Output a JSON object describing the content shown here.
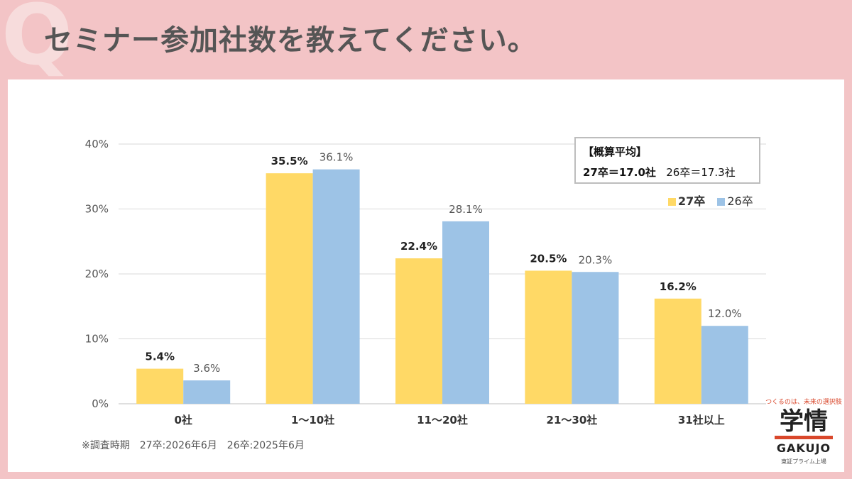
{
  "header": {
    "mark": "Q",
    "title": "セミナー参加社数を教えてください。"
  },
  "average_box": {
    "title": "【概算平均】",
    "value_27": "27卒＝17.0社",
    "value_26": "26卒＝17.3社"
  },
  "note": "※調査時期　27卒:2026年6月　26卒:2025年6月",
  "logo": {
    "tagline": "つくるのは、未来の選択肢",
    "kanji": "学情",
    "en": "GAKUJO",
    "sub": "東証プライム上場"
  },
  "colors": {
    "series_27": "#ffd966",
    "series_26": "#9dc3e6",
    "accent": "#d9472b"
  },
  "chart_data": {
    "type": "bar",
    "categories": [
      "0社",
      "1～10社",
      "11～20社",
      "21～30社",
      "31社以上"
    ],
    "series": [
      {
        "name": "27卒",
        "values": [
          5.4,
          35.5,
          22.4,
          20.5,
          16.2
        ],
        "labels": [
          "5.4%",
          "35.5%",
          "22.4%",
          "20.5%",
          "16.2%"
        ]
      },
      {
        "name": "26卒",
        "values": [
          3.6,
          36.1,
          28.1,
          20.3,
          12.0
        ],
        "labels": [
          "3.6%",
          "36.1%",
          "28.1%",
          "20.3%",
          "12.0%"
        ]
      }
    ],
    "y_ticks": [
      "0%",
      "10%",
      "20%",
      "30%",
      "40%"
    ],
    "ylim": [
      0,
      40
    ],
    "grid": true,
    "legend": "top-right"
  }
}
